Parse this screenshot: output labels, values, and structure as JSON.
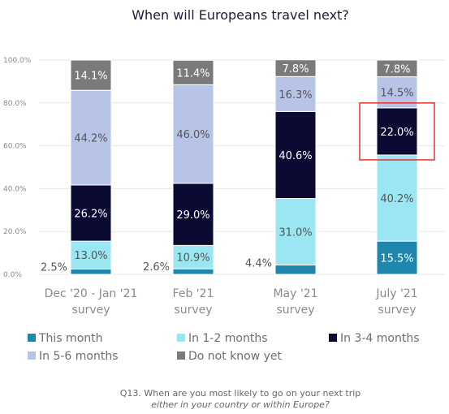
{
  "chart_data": {
    "type": "bar",
    "stacked": true,
    "title": "When will Europeans travel next?",
    "categories": [
      [
        "Dec '20 - Jan '21",
        "survey"
      ],
      [
        "Feb '21",
        "survey"
      ],
      [
        "May '21",
        "survey"
      ],
      [
        "July '21",
        "survey"
      ]
    ],
    "y_ticks": [
      "0.0%",
      "20.0%",
      "40.0%",
      "60.0%",
      "80.0%",
      "100.0%"
    ],
    "ylim": [
      0,
      100
    ],
    "grid": true,
    "legend_position": "bottom",
    "series": [
      {
        "name": "This month",
        "color": "#1f86ad",
        "label_color": "#ffffff",
        "values": [
          2.5,
          2.6,
          4.4,
          15.5
        ],
        "labels": [
          "2.5%",
          "2.6%",
          "4.4%",
          "15.5%"
        ]
      },
      {
        "name": "In 1-2 months",
        "color": "#9ae6f2",
        "label_color": "#555555",
        "values": [
          13.0,
          10.9,
          31.0,
          40.2
        ],
        "labels": [
          "13.0%",
          "10.9%",
          "31.0%",
          "40.2%"
        ]
      },
      {
        "name": "In 3-4 months",
        "color": "#0b0a33",
        "label_color": "#ffffff",
        "values": [
          26.2,
          29.0,
          40.6,
          22.0
        ],
        "labels": [
          "26.2%",
          "29.0%",
          "40.6%",
          "22.0%"
        ]
      },
      {
        "name": "In 5-6 months",
        "color": "#b7c4e8",
        "label_color": "#555555",
        "values": [
          44.2,
          46.0,
          16.3,
          14.5
        ],
        "labels": [
          "44.2%",
          "46.0%",
          "16.3%",
          "14.5%"
        ]
      },
      {
        "name": "Do not know yet",
        "color": "#7a7a7a",
        "label_color": "#ffffff",
        "values": [
          14.1,
          11.4,
          7.8,
          7.8
        ],
        "labels": [
          "14.1%",
          "11.4%",
          "7.8%",
          "7.8%"
        ]
      }
    ],
    "highlight": {
      "category_index": 3,
      "series_index": 2
    },
    "footnote": [
      "Q13. When are you most likely to go on your next trip",
      "either in your country or within Europe?"
    ]
  }
}
